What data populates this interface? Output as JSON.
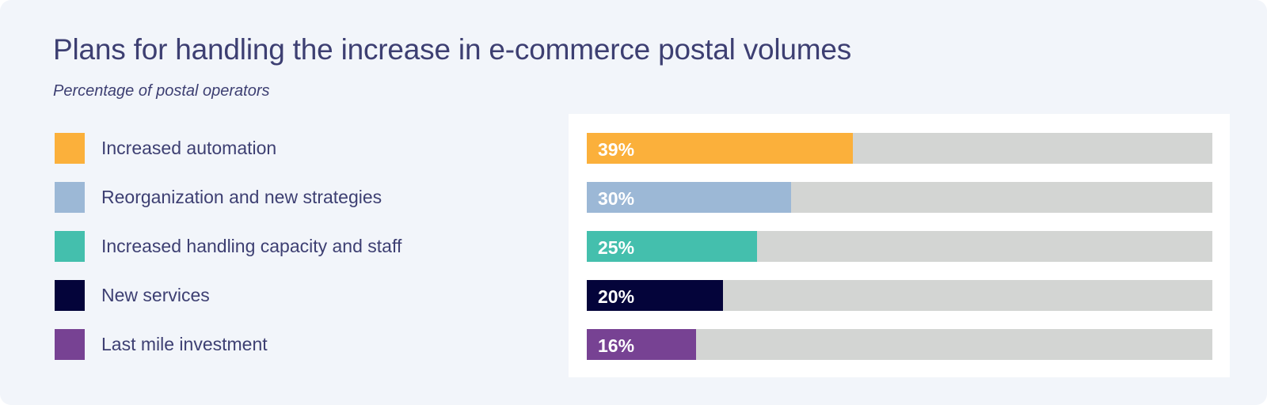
{
  "chart_data": {
    "type": "bar",
    "orientation": "horizontal",
    "title": "Plans for handling the increase in e-commerce postal volumes",
    "subtitle": "Percentage of postal operators",
    "xlim": [
      0,
      100
    ],
    "legend_position": "left",
    "categories": [
      "Increased automation",
      "Reorganization and new strategies",
      "Increased handling capacity and staff",
      "New services",
      "Last mile investment"
    ],
    "values": [
      39,
      30,
      25,
      20,
      16
    ],
    "value_labels": [
      "39%",
      "30%",
      "25%",
      "20%",
      "16%"
    ],
    "colors": [
      "#fbb03b",
      "#9cb8d6",
      "#44bfad",
      "#04043a",
      "#774293"
    ],
    "track_color": "#d3d5d3"
  }
}
